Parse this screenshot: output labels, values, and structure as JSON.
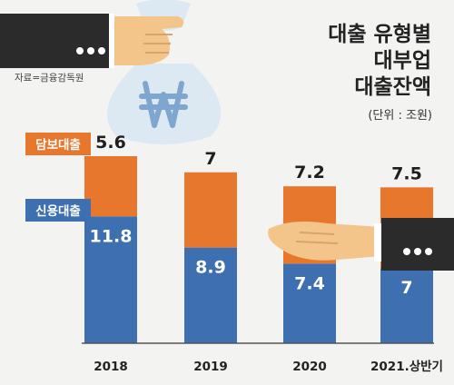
{
  "title_lines": [
    "대출 유형별",
    "대부업",
    "대출잔액"
  ],
  "unit": "(단위 : 조원)",
  "source": "자료=금융감독원",
  "colors": {
    "secured": "#e8772e",
    "credit": "#3e6fb0",
    "sleeve": "#2b2b2b",
    "hand": "#f3c58a",
    "bag": "#dce9f3",
    "won": "#7fa6cf"
  },
  "icons": [
    "hand-holding-money-bag-icon",
    "won-sign-icon",
    "open-hand-receiving-icon"
  ],
  "chart_data": {
    "type": "bar",
    "stacked": true,
    "title": "대출 유형별 대부업 대출잔액",
    "unit": "조원",
    "categories": [
      "2018",
      "2019",
      "2020",
      "2021.상반기"
    ],
    "series": [
      {
        "name": "신용대출",
        "values": [
          11.8,
          8.9,
          7.4,
          7
        ],
        "color": "#3e6fb0"
      },
      {
        "name": "담보대출",
        "values": [
          5.6,
          7,
          7.2,
          7.5
        ],
        "color": "#e8772e"
      }
    ],
    "segment_labels": [
      [
        "11.8",
        "8.9",
        "7.4",
        "7"
      ],
      [
        "5.6",
        "7",
        "7.2",
        "7.5"
      ]
    ],
    "ylim": [
      0,
      17.4
    ],
    "grid": false,
    "legend": "inline-left"
  }
}
